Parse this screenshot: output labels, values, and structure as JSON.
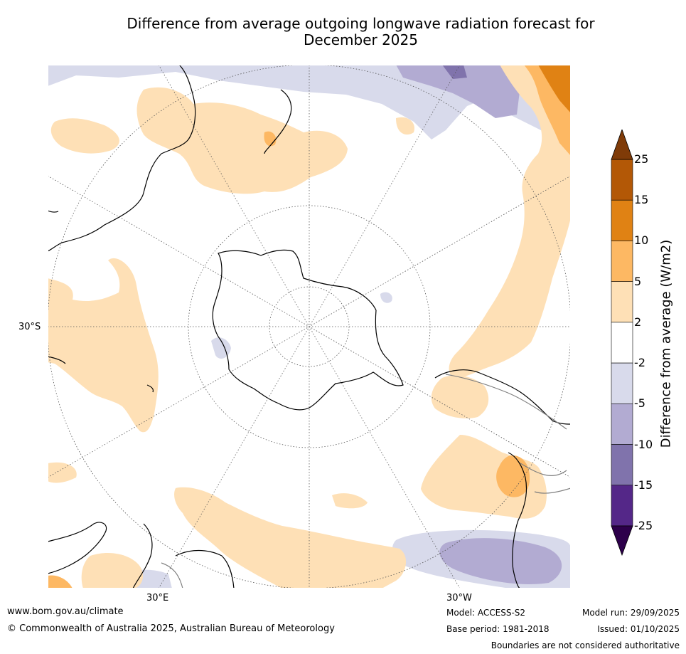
{
  "title": {
    "line1": "Difference from average outgoing longwave radiation forecast for",
    "line2": "December 2025"
  },
  "map": {
    "lat_label": "30°S",
    "lon_label_east": "30°E",
    "lon_label_west": "30°W",
    "colors": {
      "ocean": "#ffffff",
      "coast": "#000000",
      "border": "#808080",
      "graticule": "#555555"
    }
  },
  "colorbar": {
    "title": "Difference from average (W/m2)",
    "ticks": [
      "25",
      "15",
      "10",
      "5",
      "2",
      "-2",
      "-5",
      "-10",
      "-15",
      "-25"
    ],
    "colors": [
      "#b35806",
      "#e08214",
      "#fdb863",
      "#fee0b6",
      "#ffffff",
      "#d8daeb",
      "#b2abd2",
      "#8073ac",
      "#542788"
    ],
    "over_color": "#7f3b08",
    "under_color": "#2d004b"
  },
  "footer": {
    "website": "www.bom.gov.au/climate",
    "copyright": "© Commonwealth of Australia 2025, Australian Bureau of Meteorology",
    "model": "Model: ACCESS-S2",
    "base_period": "Base period: 1981-2018",
    "model_run": "Model run: 29/09/2025",
    "issued": "Issued: 01/10/2025",
    "disclaimer": "Boundaries are not considered authoritative"
  }
}
